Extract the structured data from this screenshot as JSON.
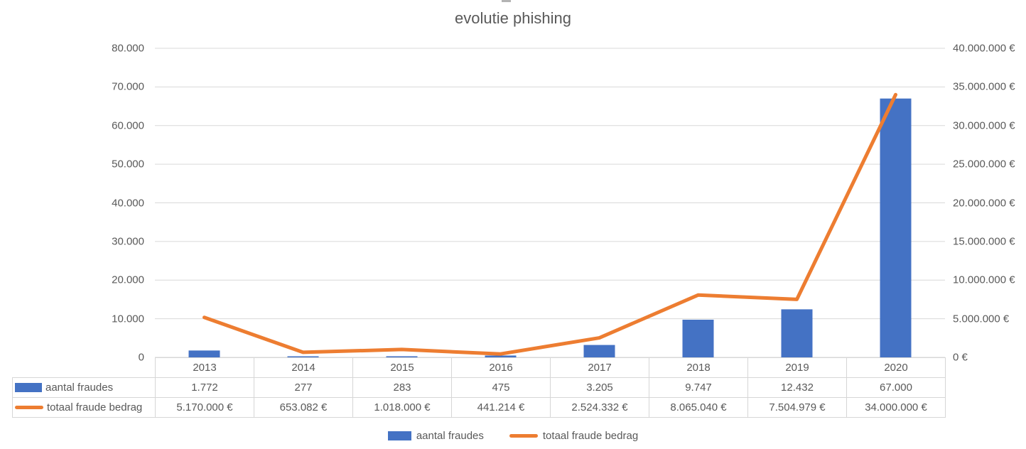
{
  "title": "evolutie phishing",
  "colors": {
    "bar": "#4472C4",
    "line": "#ED7D31",
    "text": "#595959",
    "gridline": "#d9d9d9",
    "table_border": "#d6d6d6"
  },
  "chart_data": {
    "type": "combo",
    "title": "evolutie phishing",
    "categories": [
      "2013",
      "2014",
      "2015",
      "2016",
      "2017",
      "2018",
      "2019",
      "2020"
    ],
    "series": [
      {
        "name": "aantal fraudes",
        "type": "bar",
        "axis": "left",
        "color": "#4472C4",
        "values": [
          1772,
          277,
          283,
          475,
          3205,
          9747,
          12432,
          67000
        ]
      },
      {
        "name": "totaal fraude bedrag",
        "type": "line",
        "axis": "right",
        "color": "#ED7D31",
        "values": [
          5170000,
          653082,
          1018000,
          441214,
          2524332,
          8065040,
          7504979,
          34000000
        ]
      }
    ],
    "left_axis": {
      "min": 0,
      "max": 80000,
      "tick_labels": [
        "80.000",
        "70.000",
        "60.000",
        "50.000",
        "40.000",
        "30.000",
        "20.000",
        "10.000",
        "0"
      ]
    },
    "right_axis": {
      "min": 0,
      "max": 40000000,
      "tick_labels": [
        "40.000.000 €",
        "35.000.000 €",
        "30.000.000 €",
        "25.000.000 €",
        "20.000.000 €",
        "15.000.000 €",
        "10.000.000 €",
        "5.000.000 €",
        "0 €"
      ]
    },
    "gridlines": true,
    "legend_position": "bottom"
  },
  "table": {
    "years": [
      "2013",
      "2014",
      "2015",
      "2016",
      "2017",
      "2018",
      "2019",
      "2020"
    ],
    "rows": [
      {
        "label": "aantal fraudes",
        "swatch": "bar",
        "values": [
          "1.772",
          "277",
          "283",
          "475",
          "3.205",
          "9.747",
          "12.432",
          "67.000"
        ]
      },
      {
        "label": "totaal fraude bedrag",
        "swatch": "line",
        "values": [
          "5.170.000 €",
          "653.082 €",
          "1.018.000 €",
          "441.214 €",
          "2.524.332 €",
          "8.065.040 €",
          "7.504.979 €",
          "34.000.000 €"
        ]
      }
    ]
  },
  "legend": {
    "items": [
      {
        "label": "aantal fraudes",
        "color": "#4472C4",
        "shape": "bar"
      },
      {
        "label": "totaal fraude bedrag",
        "color": "#ED7D31",
        "shape": "line"
      }
    ]
  }
}
